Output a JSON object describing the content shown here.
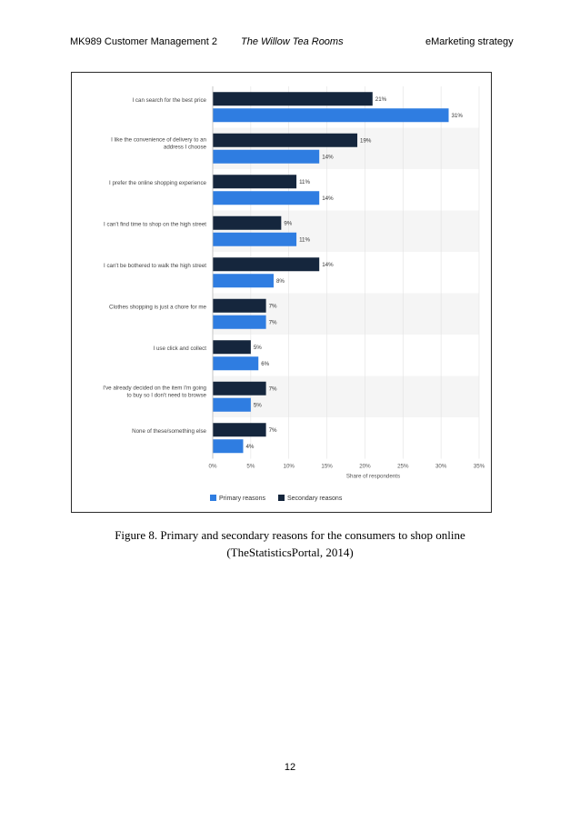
{
  "header": {
    "left": "MK989 Customer Management 2",
    "middle": "The Willow Tea Rooms",
    "right": "eMarketing strategy"
  },
  "colors": {
    "primary": "#2f7de1",
    "secondary": "#15263d",
    "band": "#f5f5f5",
    "grid": "#e2e2e2"
  },
  "chart_data": {
    "type": "bar",
    "orientation": "horizontal",
    "categories": [
      [
        "I can search for the best price"
      ],
      [
        "I like the convenience of delivery to an",
        "address I choose"
      ],
      [
        "I prefer the online shopping experience"
      ],
      [
        "I can't find time to shop on the high street"
      ],
      [
        "I can't be bothered to walk the high street"
      ],
      [
        "Clothes shopping is just a chore for me"
      ],
      [
        "I use click and collect"
      ],
      [
        "I've already decided on the item I'm going",
        "to buy so I don't need to browse"
      ],
      [
        "None of these/something else"
      ]
    ],
    "series": [
      {
        "name": "Secondary reasons",
        "values": [
          21,
          19,
          11,
          9,
          14,
          7,
          5,
          7,
          7
        ]
      },
      {
        "name": "Primary reasons",
        "values": [
          31,
          14,
          14,
          11,
          8,
          7,
          6,
          5,
          4
        ]
      }
    ],
    "xlim": [
      0,
      35
    ],
    "xticks": [
      "0%",
      "5%",
      "10%",
      "15%",
      "20%",
      "25%",
      "30%",
      "35%"
    ],
    "xlabel": "Share of respondents",
    "value_suffix": "%",
    "legend": [
      "Primary reasons",
      "Secondary reasons"
    ],
    "legend_position": "bottom-left",
    "grid": true
  },
  "caption": {
    "line1": "Figure 8. Primary and secondary reasons for the consumers to shop online",
    "line2": "(TheStatisticsPortal, 2014)"
  },
  "page_number": "12"
}
